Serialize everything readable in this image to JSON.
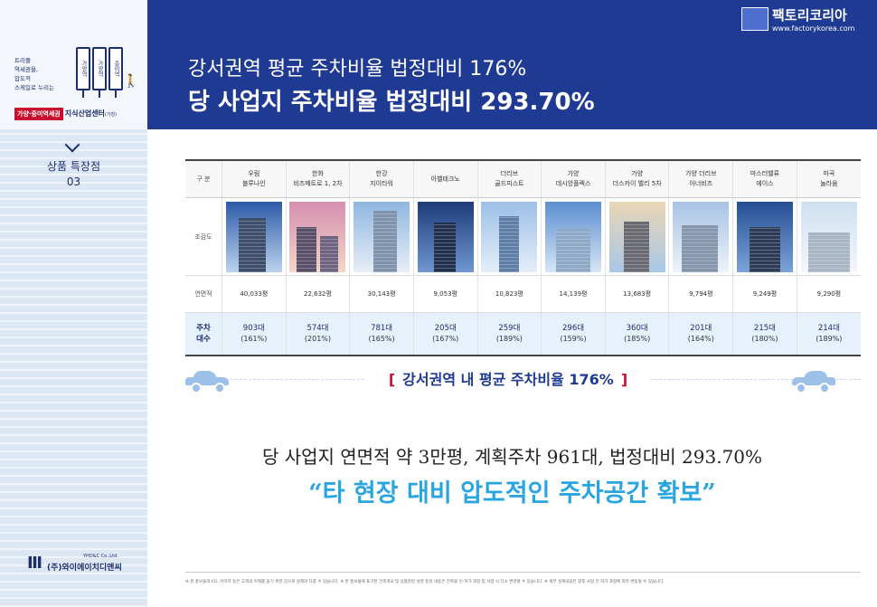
{
  "sidebar": {
    "tagline": [
      "트리플",
      "역세권을,",
      "압도적",
      "스케일로 누리는"
    ],
    "signs": [
      "가양역",
      "가양역",
      "증미역"
    ],
    "brand_red": "가양·증미역세권",
    "brand_navy": "지식산업센터",
    "brand_small": "(가칭)",
    "section_title": "상품 특장점",
    "section_number": "03",
    "company_eng": "YHD&C Co.,Ltd.",
    "company_kr": "(주)와이에이치디앤씨"
  },
  "header": {
    "subtitle": "강서권역 평균 주차비율 법정대비 176%",
    "title": "당 사업지 주차비율 법정대비 293.70%"
  },
  "brand": {
    "name": "팩토리코리아",
    "url": "www.factorykorea.com"
  },
  "table": {
    "col_label": "구 분",
    "row_labels": {
      "image": "조감도",
      "area": "연면적",
      "parking_1": "주차",
      "parking_2": "대수"
    },
    "columns": [
      {
        "name1": "우림",
        "name2": "블루나인",
        "area": "40,033평",
        "parking": "903대",
        "ratio": "(161%)"
      },
      {
        "name1": "한화",
        "name2": "비즈메트로 1, 2차",
        "area": "22,632평",
        "parking": "574대",
        "ratio": "(201%)"
      },
      {
        "name1": "한강",
        "name2": "지이타워",
        "area": "30,143평",
        "parking": "781대",
        "ratio": "(165%)"
      },
      {
        "name1": "",
        "name2": "아벨테크노",
        "area": "9,053평",
        "parking": "205대",
        "ratio": "(167%)"
      },
      {
        "name1": "더리브",
        "name2": "골드피스트",
        "area": "10,823평",
        "parking": "259대",
        "ratio": "(189%)"
      },
      {
        "name1": "가양",
        "name2": "데시앙플렉스",
        "area": "14,139평",
        "parking": "296대",
        "ratio": "(159%)"
      },
      {
        "name1": "가양",
        "name2": "더스카이 밸리 5차",
        "area": "13,683평",
        "parking": "360대",
        "ratio": "(185%)"
      },
      {
        "name1": "가양 더리브",
        "name2": "아너비즈",
        "area": "9,794평",
        "parking": "201대",
        "ratio": "(164%)"
      },
      {
        "name1": "마스터밸류",
        "name2": "에이스",
        "area": "9,249평",
        "parking": "215대",
        "ratio": "(180%)"
      },
      {
        "name1": "마곡",
        "name2": "놀라움",
        "area": "9,290평",
        "parking": "214대",
        "ratio": "(189%)"
      }
    ]
  },
  "highlight": {
    "open": "[",
    "text": "강서권역 내 평균 주차비율 176%",
    "close": "]"
  },
  "summary": {
    "line1": "당 사업지 연면적 약 3만평, 계획주차 961대, 법정대비 293.70%",
    "line2": "“타 현장 대비 압도적인 주차공간 확보”"
  },
  "footnote": "※ 본 홍보물의 CG, 이미지 등은 고객의 이해를 돕기 위한 것으로 실제와 다를 수 있습니다. ※ 본 홍보물에 표기된 건축개요 및 상품관련 설명 등의 내용은 건축물 인·허가 과정 및 사업 시 다소 변경될 수 있습니다. ※ 세부 설계내용은 향후 사업 인·허가 과정에 따라 변동될 수 있습니다.",
  "colors": {
    "navy": "#1f3a93",
    "accent_blue": "#2aa5e0",
    "red": "#c8102e",
    "parking_bg": "#e6f1fb"
  }
}
